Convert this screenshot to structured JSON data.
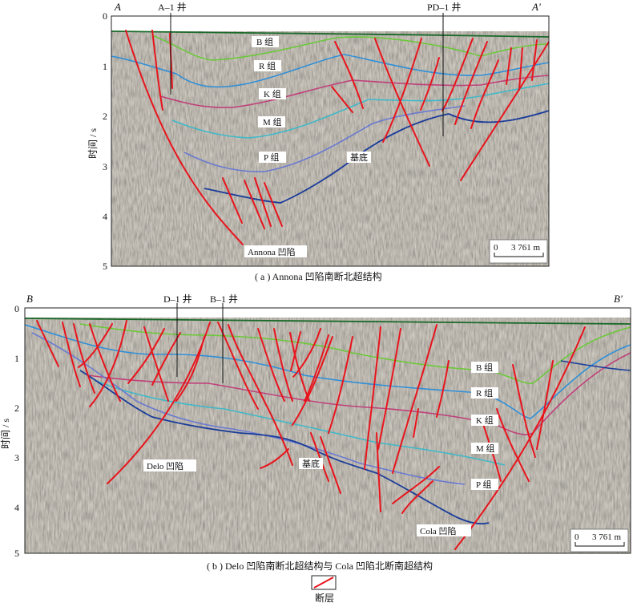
{
  "panel_a": {
    "left_label": "A",
    "right_label": "A'",
    "wells": [
      "A–1 井",
      "PD–1 井"
    ],
    "formations": [
      "B 组",
      "R 组",
      "K 组",
      "M 组",
      "P 组"
    ],
    "basement": "基底",
    "depression": "Annona 凹陷",
    "y_ticks": [
      "0",
      "1",
      "2",
      "3",
      "4",
      "5"
    ],
    "y_axis_label": "时间 / s",
    "scale_zero": "0",
    "scale_length": "3 761 m",
    "caption": "( a ) Annona 凹陷南断北超结构"
  },
  "panel_b": {
    "left_label": "B",
    "right_label": "B'",
    "wells": [
      "D–1 井",
      "B–1 井"
    ],
    "formations": [
      "B 组",
      "R 组",
      "K 组",
      "M 组",
      "P 组"
    ],
    "basement": "基底",
    "depressions": [
      "Delo 凹陷",
      "Cola 凹陷"
    ],
    "y_ticks": [
      "0",
      "1",
      "2",
      "3",
      "4",
      "5"
    ],
    "y_axis_label": "时间 / s",
    "scale_zero": "0",
    "scale_length": "3 761 m",
    "caption": "( b ) Delo 凹陷南断北超结构与 Cola 凹陷北断南超结构"
  },
  "legend": {
    "label": "断层"
  },
  "colors": {
    "fault": "#e8141c",
    "B": "#6cc83a",
    "R": "#2f8fd8",
    "K": "#c0407a",
    "M": "#40b8c8",
    "P": "#6a7ad0",
    "basement": "#1a3c9a",
    "seabed": "#1a6a2a"
  }
}
